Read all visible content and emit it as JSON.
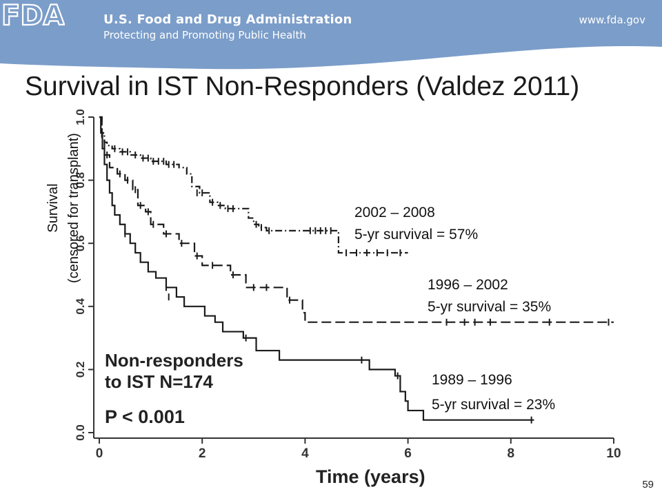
{
  "header": {
    "agency": "U.S. Food and Drug Administration",
    "tagline": "Protecting and Promoting Public Health",
    "website": "www.fda.gov",
    "logo_text": "FDA",
    "banner_color": "#7b9dc9"
  },
  "slide": {
    "title": "Survival in IST Non-Responders (Valdez 2011)",
    "page_number": "59"
  },
  "chart_data": {
    "type": "line",
    "step": true,
    "xlabel": "Time (years)",
    "ylabel_line1": "Survival",
    "ylabel_line2": "(censored for transplant)",
    "xlim": [
      0,
      10
    ],
    "ylim": [
      0,
      1.0
    ],
    "x_ticks": [
      "0",
      "2",
      "4",
      "6",
      "8",
      "10"
    ],
    "y_ticks": [
      "0.0",
      "0.2",
      "0.4",
      "0.6",
      "0.8",
      "1.0"
    ],
    "inset_line1": "Non-responders",
    "inset_line2": "to IST  N=174",
    "p_value": "P < 0.001",
    "series": [
      {
        "period": "2002 – 2008",
        "survival_label": "5-yr survival = 57%",
        "line_style": "dashdot",
        "x": [
          0,
          0.05,
          0.1,
          0.15,
          0.25,
          0.4,
          0.6,
          0.8,
          1.0,
          1.3,
          1.55,
          1.7,
          1.8,
          1.95,
          2.15,
          2.3,
          2.45,
          2.9,
          3.0,
          3.1,
          3.25,
          3.45,
          3.6,
          4.6,
          4.65,
          6.0
        ],
        "y": [
          1.0,
          0.95,
          0.92,
          0.91,
          0.9,
          0.89,
          0.88,
          0.87,
          0.86,
          0.85,
          0.84,
          0.82,
          0.78,
          0.76,
          0.73,
          0.72,
          0.71,
          0.68,
          0.66,
          0.65,
          0.64,
          0.64,
          0.64,
          0.64,
          0.57,
          0.57
        ],
        "censored": [
          [
            0.3,
            0.9
          ],
          [
            0.45,
            0.89
          ],
          [
            0.55,
            0.89
          ],
          [
            0.7,
            0.88
          ],
          [
            0.85,
            0.87
          ],
          [
            0.95,
            0.87
          ],
          [
            1.05,
            0.86
          ],
          [
            1.15,
            0.86
          ],
          [
            1.25,
            0.86
          ],
          [
            1.35,
            0.85
          ],
          [
            1.45,
            0.85
          ],
          [
            1.9,
            0.76
          ],
          [
            2.0,
            0.76
          ],
          [
            2.2,
            0.73
          ],
          [
            2.35,
            0.72
          ],
          [
            2.5,
            0.71
          ],
          [
            2.6,
            0.71
          ],
          [
            3.05,
            0.66
          ],
          [
            3.15,
            0.65
          ],
          [
            3.3,
            0.64
          ],
          [
            4.1,
            0.64
          ],
          [
            4.2,
            0.64
          ],
          [
            4.3,
            0.64
          ],
          [
            4.4,
            0.64
          ],
          [
            4.5,
            0.64
          ],
          [
            4.8,
            0.57
          ],
          [
            5.0,
            0.57
          ],
          [
            5.2,
            0.57
          ],
          [
            5.4,
            0.57
          ],
          [
            5.6,
            0.57
          ],
          [
            5.85,
            0.57
          ]
        ]
      },
      {
        "period": "1996 – 2002",
        "survival_label": "5-yr survival = 35%",
        "line_style": "dashed",
        "x": [
          0,
          0.05,
          0.1,
          0.2,
          0.35,
          0.5,
          0.65,
          0.75,
          0.9,
          1.0,
          1.25,
          1.55,
          1.85,
          2.0,
          2.55,
          2.85,
          3.6,
          3.65,
          3.95,
          4.0,
          10
        ],
        "y": [
          1.0,
          0.93,
          0.88,
          0.84,
          0.82,
          0.8,
          0.77,
          0.72,
          0.7,
          0.66,
          0.63,
          0.6,
          0.56,
          0.53,
          0.5,
          0.46,
          0.46,
          0.42,
          0.38,
          0.35,
          0.35
        ],
        "censored": [
          [
            0.15,
            0.88
          ],
          [
            0.4,
            0.82
          ],
          [
            0.55,
            0.8
          ],
          [
            0.7,
            0.77
          ],
          [
            0.8,
            0.72
          ],
          [
            0.95,
            0.7
          ],
          [
            1.05,
            0.66
          ],
          [
            1.3,
            0.63
          ],
          [
            1.6,
            0.6
          ],
          [
            1.9,
            0.56
          ],
          [
            2.2,
            0.53
          ],
          [
            2.6,
            0.5
          ],
          [
            3.0,
            0.46
          ],
          [
            3.25,
            0.46
          ],
          [
            3.7,
            0.42
          ],
          [
            6.75,
            0.35
          ],
          [
            7.1,
            0.35
          ],
          [
            7.3,
            0.35
          ],
          [
            7.6,
            0.35
          ],
          [
            8.75,
            0.35
          ],
          [
            9.9,
            0.35
          ]
        ]
      },
      {
        "period": "1989 – 1996",
        "survival_label": "5-yr survival = 23%",
        "line_style": "solid",
        "x": [
          0,
          0.03,
          0.06,
          0.1,
          0.15,
          0.2,
          0.25,
          0.3,
          0.4,
          0.5,
          0.6,
          0.7,
          0.8,
          0.95,
          1.1,
          1.3,
          1.5,
          1.65,
          2.05,
          2.25,
          2.4,
          2.8,
          3.05,
          3.5,
          5.25,
          5.75,
          5.85,
          5.95,
          6.0,
          6.3,
          8.45
        ],
        "y": [
          1.0,
          0.95,
          0.9,
          0.85,
          0.8,
          0.76,
          0.72,
          0.69,
          0.66,
          0.63,
          0.6,
          0.57,
          0.54,
          0.51,
          0.49,
          0.46,
          0.43,
          0.4,
          0.37,
          0.35,
          0.32,
          0.3,
          0.26,
          0.23,
          0.2,
          0.18,
          0.13,
          0.1,
          0.07,
          0.04,
          0.04
        ],
        "censored": [
          [
            0.5,
            0.63
          ],
          [
            1.3,
            0.46
          ],
          [
            1.35,
            0.43
          ],
          [
            2.85,
            0.3
          ],
          [
            5.1,
            0.23
          ],
          [
            5.8,
            0.18
          ],
          [
            8.4,
            0.04
          ]
        ]
      }
    ]
  }
}
